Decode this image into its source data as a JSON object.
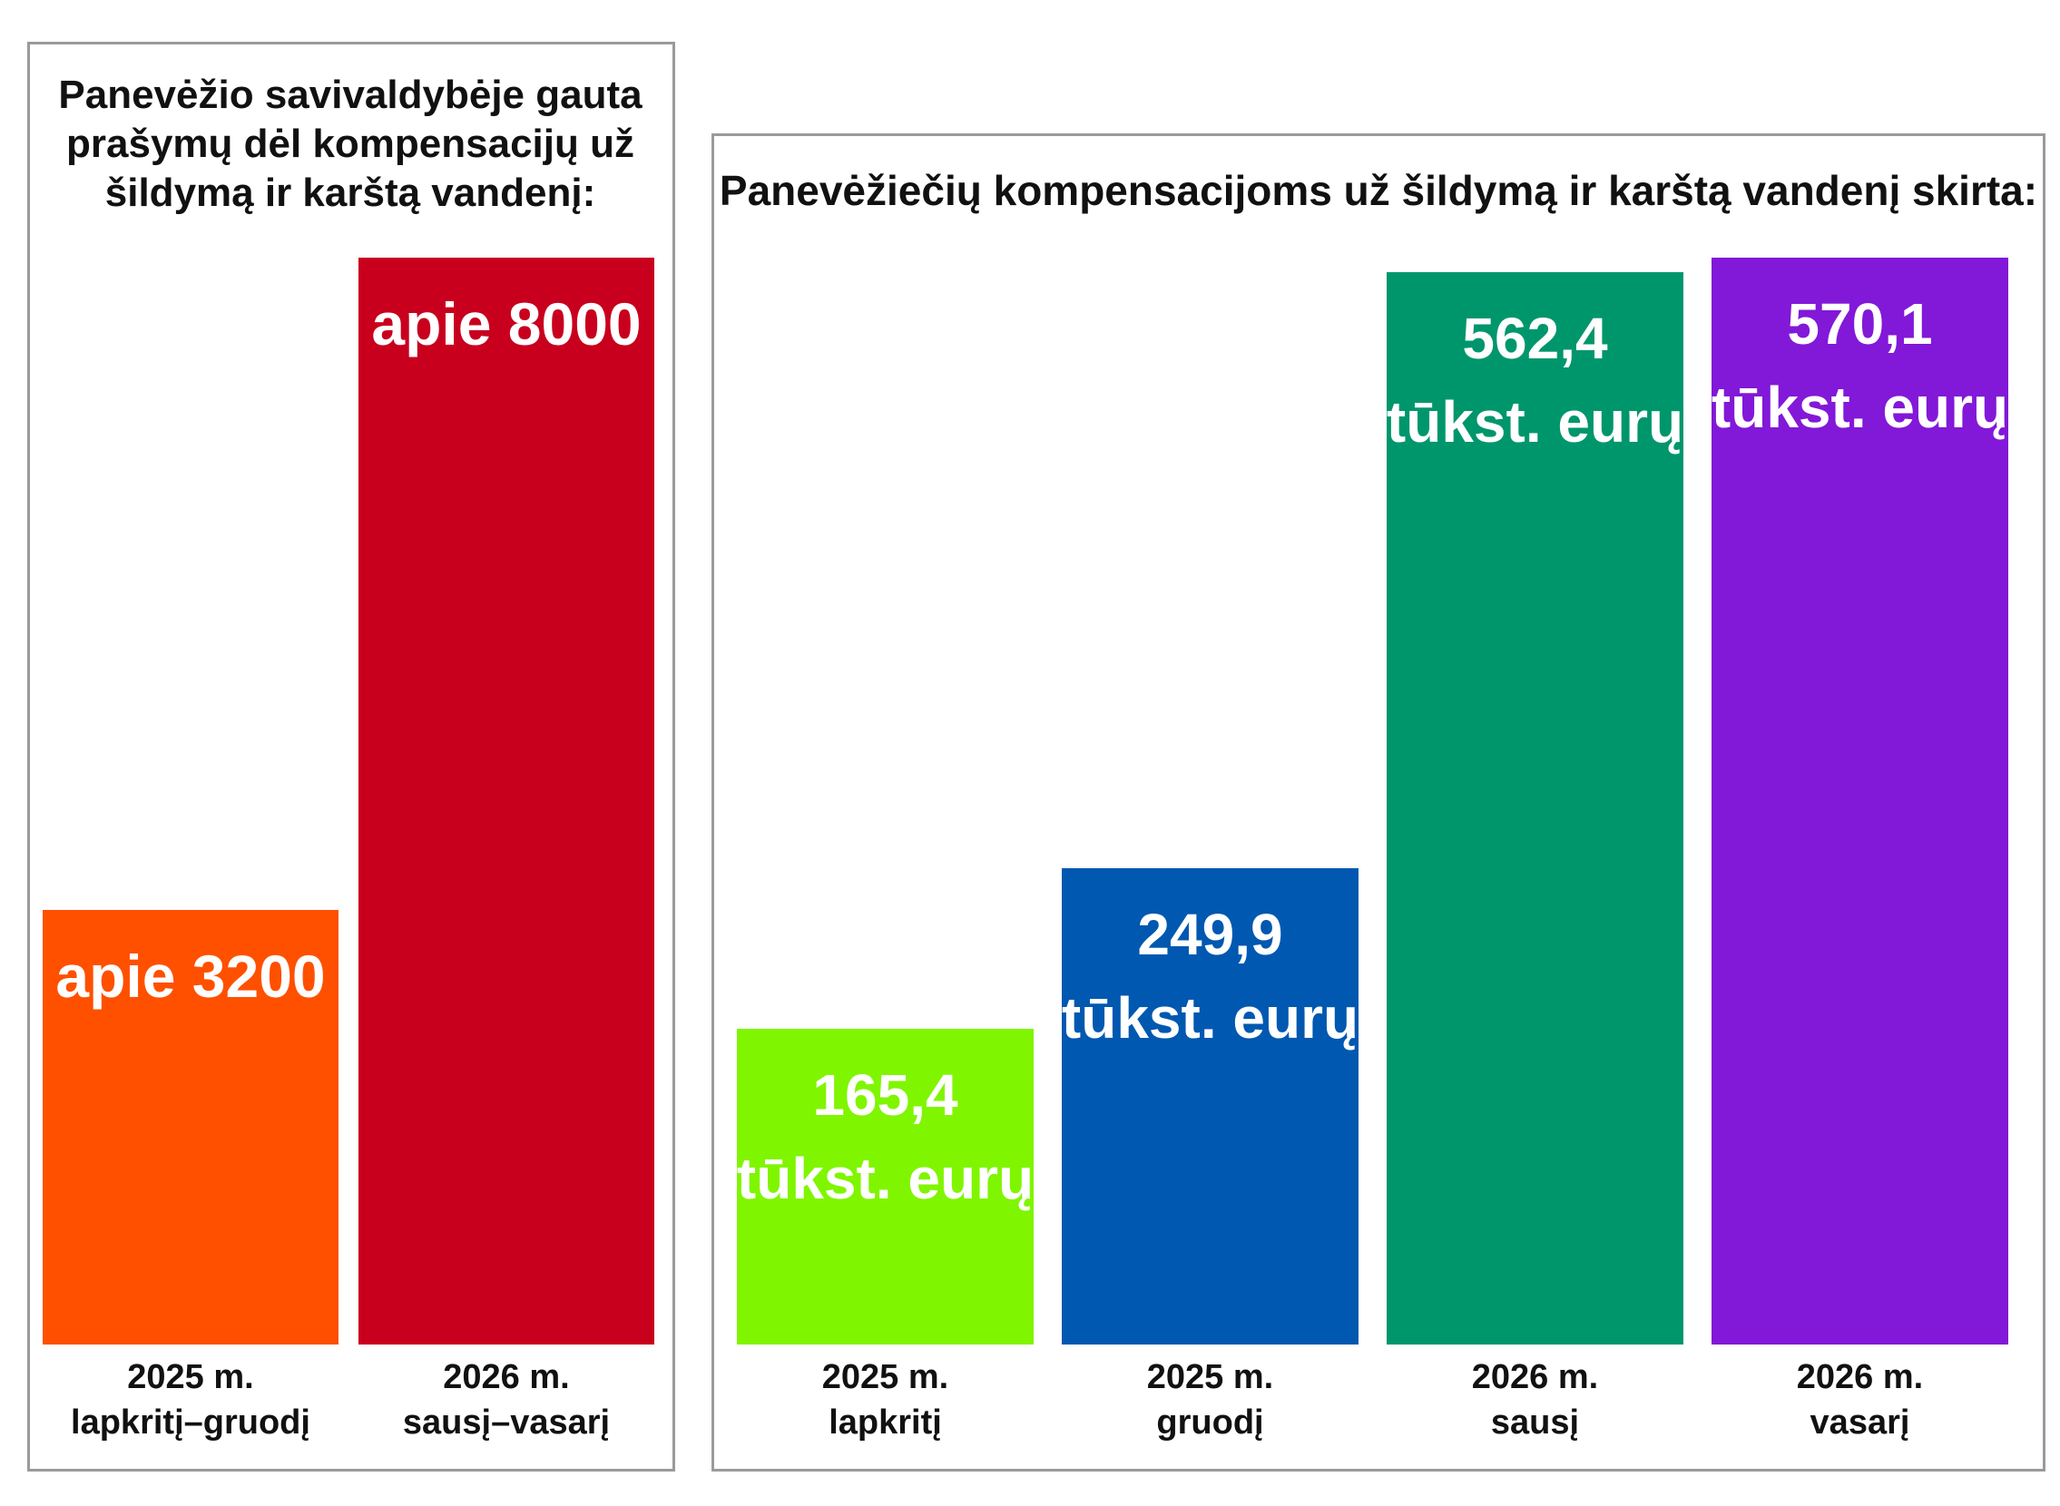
{
  "chart_data": [
    {
      "type": "bar",
      "title": "Panevėžio savivaldybėje gauta\nprašymų dėl kompensacijų už\nšildymą ir karštą vandenį:",
      "xlabel": "",
      "ylabel": "",
      "ylim": [
        0,
        8000
      ],
      "grid": false,
      "categories": [
        "2025 m.\nlapkritį–gruodį",
        "2026 m.\nsausį–vasarį"
      ],
      "values": [
        3200,
        8000
      ],
      "labels": [
        "apie  3200",
        "apie 8000"
      ],
      "colors": [
        "#ff5000",
        "#c8001e"
      ]
    },
    {
      "type": "bar",
      "title": "Panevėžiečių kompensacijoms už šildymą ir karštą vandenį skirta:",
      "xlabel": "",
      "ylabel": "tūkst. eurų",
      "ylim": [
        0,
        570.1
      ],
      "grid": false,
      "categories": [
        "2025 m.\nlapkritį",
        "2025 m.\ngruodį",
        "2026 m.\nsausį",
        "2026 m.\nvasarį"
      ],
      "values": [
        165.4,
        249.9,
        562.4,
        570.1
      ],
      "labels": [
        "165,4\ntūkst. eurų",
        "249,9\ntūkst. eurų",
        "562,4\ntūkst. eurų",
        "570,1\ntūkst. eurų"
      ],
      "colors": [
        "#80f500",
        "#0058b0",
        "#00966c",
        "#8218d8"
      ]
    }
  ]
}
